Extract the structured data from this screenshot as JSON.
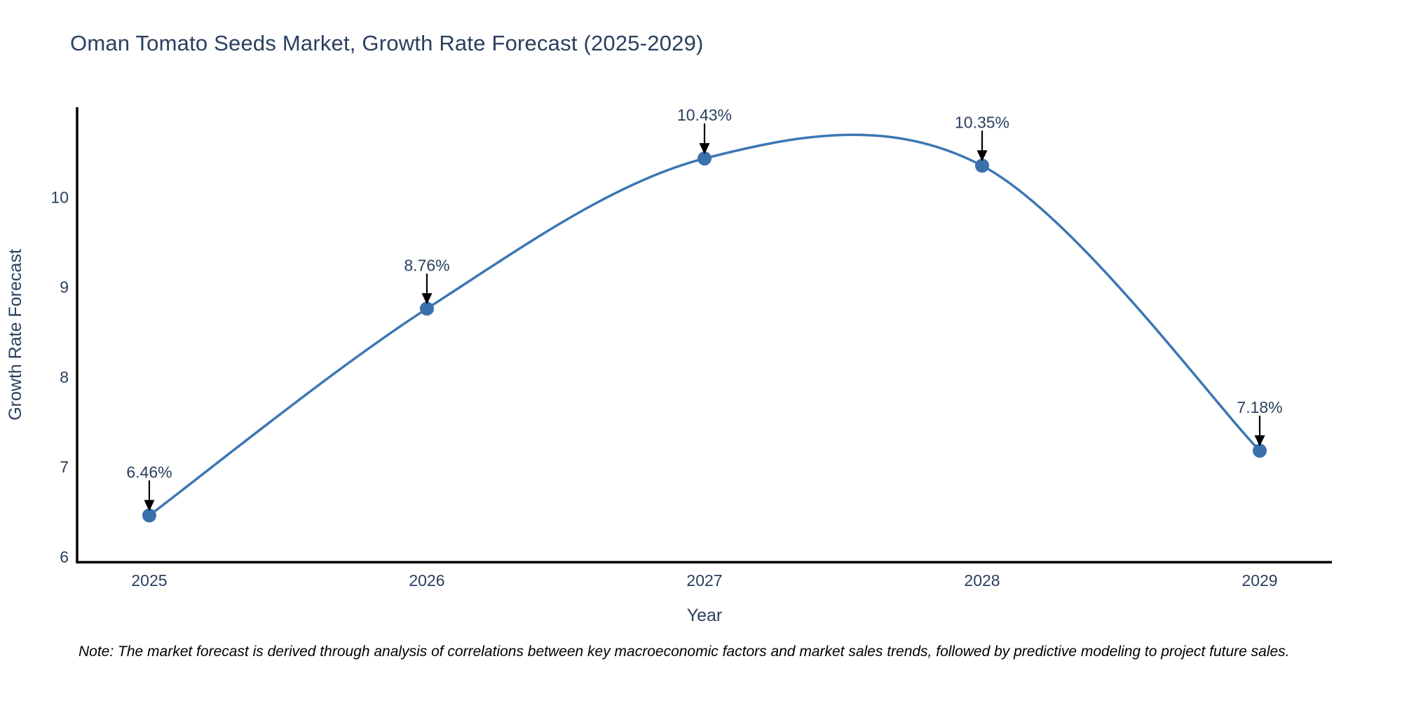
{
  "page": {
    "title": "Oman Tomato Seeds Market, Growth Rate Forecast (2025-2029)",
    "note": "Note: The market forecast is derived through analysis of correlations between key macroeconomic factors and market sales trends, followed by predictive modeling to project future sales."
  },
  "chart_data": {
    "type": "line",
    "title": "Oman Tomato Seeds Market, Growth Rate Forecast (2025-2029)",
    "xlabel": "Year",
    "ylabel": "Growth Rate Forecast",
    "categories": [
      "2025",
      "2026",
      "2027",
      "2028",
      "2029"
    ],
    "x": [
      2025,
      2026,
      2027,
      2028,
      2029
    ],
    "values": [
      6.46,
      8.76,
      10.43,
      10.35,
      7.18
    ],
    "annotations": [
      "6.46%",
      "8.76%",
      "10.43%",
      "10.35%",
      "7.18%"
    ],
    "yticks": [
      6,
      7,
      8,
      9,
      10
    ],
    "ylim": [
      5.94,
      11.0
    ],
    "xlim": [
      2024.74,
      2029.26
    ],
    "line_shape": "spline",
    "grid": false,
    "legend_position": "none",
    "line_color": "#3c76b4",
    "marker_color": "#3a71ac",
    "axis_color": "#000000",
    "arrow_color": "#000000",
    "text_color": "#2a3f5f",
    "note_color": "#000000",
    "background_color": "#ffffff"
  }
}
